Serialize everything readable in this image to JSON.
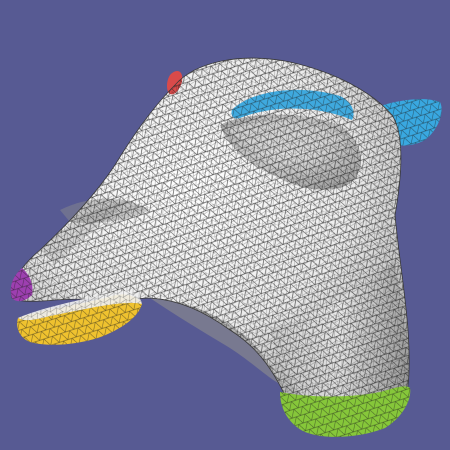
{
  "scene": {
    "background_color": "#575a93",
    "mesh_base_color": "#f4f4f4",
    "mesh_shade_color": "#9a9a9a",
    "wire_color": "#1a1a1a",
    "region_colors": {
      "brow": "#3fa9de",
      "ear": "#39a8e0",
      "nose_tip": "#9d3fb0",
      "lower_lip": "#efc22f",
      "neck_base": "#86c73a",
      "head_spot": "#d94a4a"
    }
  }
}
